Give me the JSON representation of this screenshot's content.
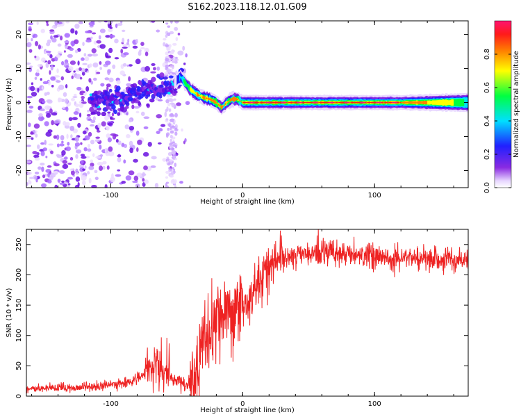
{
  "title": "S162.2023.118.12.01.G09",
  "colors": {
    "snr_line": "#ee2222",
    "spectrogram_low": "#8a2be2",
    "spectrogram_high": "#ff2222"
  },
  "chart_data": [
    {
      "type": "heatmap",
      "name": "spectrogram",
      "xlabel": "Height of straight line (km)",
      "ylabel": "Frequency (Hz)",
      "xlim": [
        -164,
        171
      ],
      "ylim": [
        -25,
        24
      ],
      "xticks": [
        -100,
        0,
        100
      ],
      "yticks": [
        -20,
        -10,
        0,
        10,
        20
      ],
      "xticklabels": [
        "-100",
        "0",
        "100"
      ],
      "yticklabels": [
        "-20",
        "-10",
        "0",
        "10",
        "20"
      ],
      "colorbar": {
        "label": "Normalized spectral amplitude",
        "range": [
          0,
          1
        ],
        "ticks": [
          0.0,
          0.2,
          0.4,
          0.6,
          0.8
        ],
        "ticklabels": [
          "0.0",
          "0.2",
          "0.4",
          "0.6",
          "0.8"
        ]
      },
      "ridge": {
        "x": [
          -110,
          -100,
          -90,
          -80,
          -70,
          -60,
          -55,
          -50,
          -47,
          -44,
          -40,
          -35,
          -30,
          -25,
          -20,
          -16,
          -12,
          -8,
          -4,
          0,
          170
        ],
        "y": [
          0,
          1,
          1.5,
          3,
          4,
          4,
          5,
          6.5,
          7.5,
          6,
          4,
          2.5,
          1.5,
          1,
          0,
          -1.5,
          0,
          1,
          1,
          0,
          0
        ]
      }
    },
    {
      "type": "line",
      "name": "snr",
      "xlabel": "Height of straight line (km)",
      "ylabel": "SNR (10 * v/v)",
      "xlim": [
        -164,
        171
      ],
      "ylim": [
        0,
        275
      ],
      "xticks": [
        -100,
        0,
        100
      ],
      "yticks": [
        0,
        50,
        100,
        150,
        200,
        250
      ],
      "xticklabels": [
        "-100",
        "0",
        "100"
      ],
      "yticklabels": [
        "0",
        "50",
        "100",
        "150",
        "200",
        "250"
      ],
      "series": [
        {
          "x": [
            -164,
            -150,
            -130,
            -110,
            -95,
            -85,
            -75,
            -70,
            -66,
            -62,
            -58,
            -54,
            -50,
            -45,
            -40,
            -36,
            -32,
            -28,
            -25,
            -22,
            -18,
            -14,
            -10,
            -5,
            0,
            5,
            10,
            15,
            20,
            25,
            30,
            40,
            50,
            60,
            70,
            80,
            100,
            120,
            140,
            160,
            171
          ],
          "y": [
            12,
            12,
            14,
            16,
            20,
            24,
            35,
            45,
            50,
            45,
            35,
            30,
            25,
            20,
            20,
            30,
            60,
            90,
            100,
            110,
            120,
            125,
            130,
            140,
            150,
            160,
            180,
            200,
            215,
            225,
            228,
            232,
            235,
            238,
            236,
            234,
            232,
            228,
            226,
            224,
            225
          ]
        }
      ]
    }
  ]
}
